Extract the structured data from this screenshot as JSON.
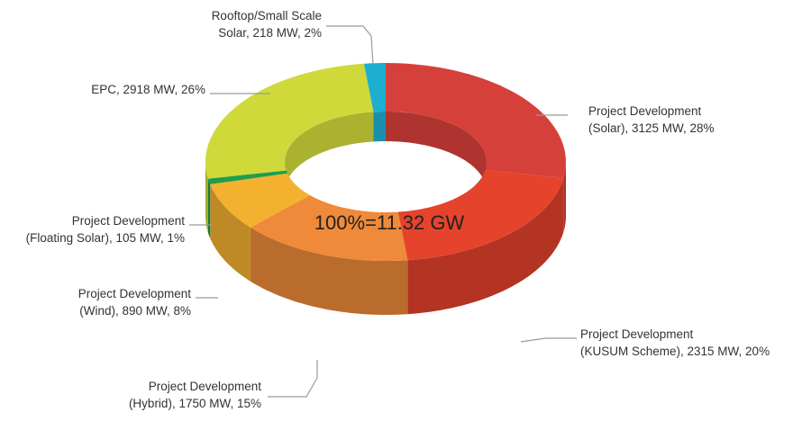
{
  "chart_data": {
    "type": "pie",
    "donut": true,
    "style": "3d",
    "center_label": "100%=11.32 GW",
    "slices": [
      {
        "name": "Project Development (Solar)",
        "value_mw": 3125,
        "percent": 28,
        "color": "#d6403a",
        "label_lines": [
          "Project Development",
          "(Solar), 3125 MW, 28%"
        ]
      },
      {
        "name": "Project Development (KUSUM Scheme)",
        "value_mw": 2315,
        "percent": 20,
        "color": "#e5432b",
        "label_lines": [
          "Project Development",
          "(KUSUM Scheme), 2315 MW, 20%"
        ]
      },
      {
        "name": "Project Development (Hybrid)",
        "value_mw": 1750,
        "percent": 15,
        "color": "#ef8a3a",
        "label_lines": [
          "Project Development",
          "(Hybrid), 1750 MW, 15%"
        ]
      },
      {
        "name": "Project Development (Wind)",
        "value_mw": 890,
        "percent": 8,
        "color": "#f4b12f",
        "label_lines": [
          "Project Development",
          "(Wind), 890 MW, 8%"
        ]
      },
      {
        "name": "Project Development (Floating Solar)",
        "value_mw": 105,
        "percent": 1,
        "color": "#1f9e4a",
        "label_lines": [
          "Project Development",
          "(Floating Solar), 105 MW, 1%"
        ]
      },
      {
        "name": "EPC",
        "value_mw": 2918,
        "percent": 26,
        "color": "#cfd93a",
        "label_lines": [
          "EPC, 2918 MW, 26%"
        ]
      },
      {
        "name": "Rooftop/Small Scale Solar",
        "value_mw": 218,
        "percent": 2,
        "color": "#1eaed0",
        "label_lines": [
          "Rooftop/Small Scale",
          "Solar, 218 MW, 2%"
        ]
      }
    ]
  }
}
